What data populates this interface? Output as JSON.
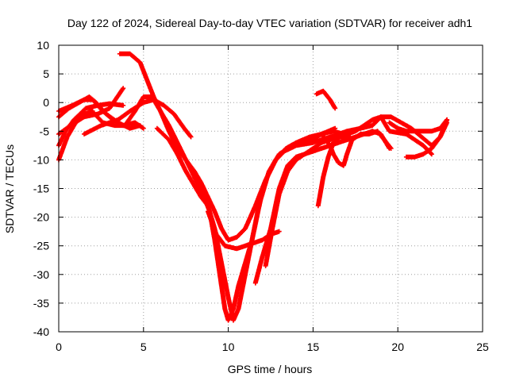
{
  "chart_data": {
    "type": "scatter",
    "title": "Day 122 of 2024, Sidereal Day-to-day VTEC variation (SDTVAR) for receiver adh1",
    "xlabel": "GPS time / hours",
    "ylabel": "SDTVAR / TECUs",
    "xlim": [
      0,
      25
    ],
    "ylim": [
      -40,
      10
    ],
    "xticks": [
      0,
      5,
      10,
      15,
      20,
      25
    ],
    "yticks": [
      10,
      5,
      0,
      -5,
      -10,
      -15,
      -20,
      -25,
      -30,
      -35,
      -40
    ],
    "grid": true,
    "marker": "+",
    "color": "#ff0000",
    "series": [
      {
        "values": [
          [
            0.0,
            -2.5
          ],
          [
            0.6,
            -1.0
          ],
          [
            1.2,
            0.0
          ],
          [
            1.8,
            1.0
          ],
          [
            2.2,
            0.0
          ],
          [
            2.8,
            -2.0
          ],
          [
            3.5,
            -3.5
          ],
          [
            4.2,
            -4.5
          ],
          [
            4.8,
            -4.0
          ]
        ]
      },
      {
        "values": [
          [
            0.0,
            -7.5
          ],
          [
            0.4,
            -5.0
          ],
          [
            0.9,
            -3.0
          ],
          [
            1.6,
            -1.0
          ],
          [
            2.3,
            -0.5
          ],
          [
            3.0,
            -0.2
          ],
          [
            3.8,
            -0.5
          ]
        ]
      },
      {
        "values": [
          [
            0.0,
            -10.0
          ],
          [
            0.5,
            -6.0
          ],
          [
            1.0,
            -3.5
          ],
          [
            1.5,
            -2.0
          ],
          [
            2.0,
            -1.5
          ]
        ]
      },
      {
        "values": [
          [
            0.0,
            -1.5
          ],
          [
            0.8,
            -0.5
          ],
          [
            1.5,
            0.5
          ],
          [
            2.0,
            0.5
          ],
          [
            2.6,
            -1.5
          ],
          [
            3.2,
            -3.0
          ],
          [
            3.8,
            -4.0
          ],
          [
            4.5,
            -3.5
          ],
          [
            5.0,
            -4.5
          ]
        ]
      },
      {
        "values": [
          [
            0.0,
            -5.5
          ],
          [
            0.7,
            -4.0
          ],
          [
            1.5,
            -2.5
          ],
          [
            2.3,
            -2.0
          ],
          [
            3.0,
            -1.0
          ],
          [
            3.8,
            2.5
          ]
        ]
      },
      {
        "values": [
          [
            1.5,
            -5.5
          ],
          [
            2.5,
            -4.0
          ],
          [
            3.5,
            -3.0
          ],
          [
            4.2,
            -1.5
          ],
          [
            5.0,
            0.0
          ],
          [
            5.6,
            0.5
          ],
          [
            6.2,
            -0.5
          ],
          [
            6.8,
            -2.0
          ],
          [
            7.4,
            -4.5
          ],
          [
            7.8,
            -6.0
          ]
        ]
      },
      {
        "values": [
          [
            1.8,
            -1.0
          ],
          [
            2.6,
            -3.5
          ],
          [
            3.3,
            -4.0
          ],
          [
            3.9,
            -4.0
          ],
          [
            4.5,
            -1.5
          ],
          [
            5.0,
            1.0
          ],
          [
            5.5,
            1.0
          ],
          [
            6.0,
            -1.5
          ],
          [
            6.5,
            -5.0
          ],
          [
            7.0,
            -8.0
          ],
          [
            7.5,
            -10.0
          ],
          [
            8.0,
            -12.0
          ],
          [
            8.4,
            -14.0
          ],
          [
            8.8,
            -16.5
          ],
          [
            9.2,
            -19.0
          ],
          [
            9.6,
            -22.0
          ],
          [
            10.0,
            -24.0
          ],
          [
            10.5,
            -23.5
          ],
          [
            11.0,
            -22.0
          ],
          [
            11.6,
            -18.0
          ],
          [
            12.2,
            -13.5
          ],
          [
            12.8,
            -10.0
          ],
          [
            13.4,
            -8.0
          ],
          [
            14.0,
            -7.0
          ],
          [
            14.8,
            -6.0
          ],
          [
            15.5,
            -5.5
          ],
          [
            16.2,
            -5.0
          ],
          [
            16.8,
            -5.5
          ]
        ]
      },
      {
        "values": [
          [
            3.6,
            8.5
          ],
          [
            4.2,
            8.5
          ],
          [
            4.8,
            7.0
          ],
          [
            5.2,
            4.0
          ],
          [
            5.6,
            1.0
          ],
          [
            6.0,
            -1.5
          ],
          [
            6.5,
            -4.0
          ],
          [
            7.0,
            -7.0
          ],
          [
            7.5,
            -10.0
          ],
          [
            8.0,
            -13.0
          ],
          [
            8.5,
            -16.0
          ],
          [
            8.9,
            -19.0
          ],
          [
            9.2,
            -24.0
          ],
          [
            9.5,
            -30.0
          ],
          [
            9.8,
            -36.0
          ],
          [
            10.0,
            -38.0
          ],
          [
            10.3,
            -36.0
          ],
          [
            10.6,
            -32.0
          ],
          [
            11.0,
            -28.0
          ],
          [
            11.4,
            -24.0
          ],
          [
            11.8,
            -18.0
          ],
          [
            12.3,
            -13.0
          ],
          [
            12.8,
            -10.0
          ],
          [
            13.3,
            -8.5
          ],
          [
            14.0,
            -7.5
          ],
          [
            15.0,
            -7.0
          ],
          [
            16.0,
            -6.0
          ],
          [
            17.0,
            -5.0
          ],
          [
            17.8,
            -4.5
          ],
          [
            18.5,
            -4.0
          ],
          [
            19.0,
            -2.5
          ],
          [
            19.5,
            -5.0
          ],
          [
            20.5,
            -5.5
          ],
          [
            21.5,
            -7.5
          ],
          [
            22.0,
            -9.0
          ]
        ]
      },
      {
        "values": [
          [
            5.8,
            -4.5
          ],
          [
            6.5,
            -6.5
          ],
          [
            7.0,
            -9.0
          ],
          [
            7.5,
            -12.0
          ],
          [
            8.0,
            -14.5
          ],
          [
            8.4,
            -16.5
          ],
          [
            8.8,
            -18.0
          ],
          [
            9.2,
            -22.0
          ],
          [
            9.6,
            -28.0
          ],
          [
            10.0,
            -34.0
          ],
          [
            10.3,
            -38.0
          ],
          [
            10.6,
            -36.0
          ],
          [
            11.0,
            -30.0
          ],
          [
            11.4,
            -24.0
          ],
          [
            11.9,
            -17.0
          ],
          [
            12.4,
            -12.0
          ],
          [
            13.0,
            -9.0
          ],
          [
            13.8,
            -7.5
          ],
          [
            14.5,
            -7.0
          ],
          [
            15.0,
            -6.5
          ],
          [
            15.5,
            -5.5
          ],
          [
            16.3,
            -4.5
          ]
        ]
      },
      {
        "values": [
          [
            8.8,
            -19.0
          ],
          [
            9.3,
            -23.0
          ],
          [
            9.8,
            -25.0
          ],
          [
            10.5,
            -25.5
          ],
          [
            11.0,
            -25.0
          ],
          [
            11.5,
            -24.5
          ],
          [
            12.0,
            -24.0
          ],
          [
            12.5,
            -23.0
          ],
          [
            13.0,
            -22.5
          ]
        ]
      },
      {
        "values": [
          [
            11.6,
            -31.5
          ],
          [
            12.0,
            -27.0
          ],
          [
            12.5,
            -22.0
          ],
          [
            13.0,
            -15.0
          ],
          [
            13.5,
            -11.0
          ],
          [
            14.0,
            -9.5
          ],
          [
            14.5,
            -9.0
          ],
          [
            15.0,
            -8.5
          ],
          [
            15.5,
            -8.0
          ],
          [
            16.0,
            -7.5
          ],
          [
            16.5,
            -7.0
          ],
          [
            17.0,
            -6.5
          ],
          [
            17.5,
            -6.0
          ],
          [
            18.0,
            -5.5
          ],
          [
            18.5,
            -5.0
          ],
          [
            19.0,
            -5.5
          ],
          [
            19.5,
            -8.0
          ]
        ]
      },
      {
        "values": [
          [
            12.2,
            -28.5
          ],
          [
            12.6,
            -22.0
          ],
          [
            13.0,
            -16.0
          ],
          [
            13.5,
            -12.0
          ],
          [
            14.0,
            -10.0
          ],
          [
            14.5,
            -9.0
          ],
          [
            15.0,
            -8.0
          ],
          [
            15.5,
            -7.0
          ],
          [
            16.0,
            -6.5
          ],
          [
            16.5,
            -6.0
          ],
          [
            17.0,
            -5.5
          ],
          [
            17.5,
            -5.0
          ],
          [
            18.0,
            -4.0
          ],
          [
            18.5,
            -3.0
          ],
          [
            19.0,
            -2.5
          ],
          [
            19.6,
            -2.5
          ],
          [
            20.2,
            -3.5
          ],
          [
            20.8,
            -4.5
          ],
          [
            21.4,
            -6.0
          ],
          [
            22.0,
            -7.5
          ],
          [
            22.5,
            -6.0
          ],
          [
            22.9,
            -3.0
          ]
        ]
      },
      {
        "values": [
          [
            15.2,
            1.5
          ],
          [
            15.6,
            2.0
          ],
          [
            16.0,
            0.5
          ],
          [
            16.3,
            -1.0
          ]
        ]
      },
      {
        "values": [
          [
            15.3,
            -18.0
          ],
          [
            15.6,
            -13.0
          ],
          [
            15.9,
            -9.5
          ],
          [
            16.2,
            -7.0
          ],
          [
            16.6,
            -6.0
          ],
          [
            17.2,
            -6.0
          ]
        ]
      },
      {
        "values": [
          [
            15.5,
            -5.5
          ],
          [
            16.0,
            -7.5
          ],
          [
            16.2,
            -9.0
          ],
          [
            16.5,
            -10.5
          ],
          [
            16.8,
            -11.0
          ],
          [
            17.0,
            -9.0
          ],
          [
            17.3,
            -6.5
          ],
          [
            17.8,
            -5.5
          ],
          [
            18.3,
            -5.5
          ],
          [
            18.8,
            -5.0
          ],
          [
            19.2,
            -6.5
          ],
          [
            19.6,
            -8.0
          ]
        ]
      },
      {
        "values": [
          [
            19.5,
            -3.5
          ],
          [
            20.0,
            -4.5
          ],
          [
            20.5,
            -5.0
          ],
          [
            21.0,
            -5.0
          ],
          [
            21.5,
            -5.0
          ],
          [
            22.0,
            -5.0
          ],
          [
            22.5,
            -4.5
          ],
          [
            22.9,
            -3.0
          ]
        ]
      },
      {
        "values": [
          [
            20.5,
            -9.5
          ],
          [
            21.0,
            -9.5
          ],
          [
            21.5,
            -9.0
          ],
          [
            22.0,
            -8.0
          ],
          [
            22.5,
            -6.0
          ],
          [
            22.9,
            -3.5
          ]
        ]
      }
    ]
  }
}
